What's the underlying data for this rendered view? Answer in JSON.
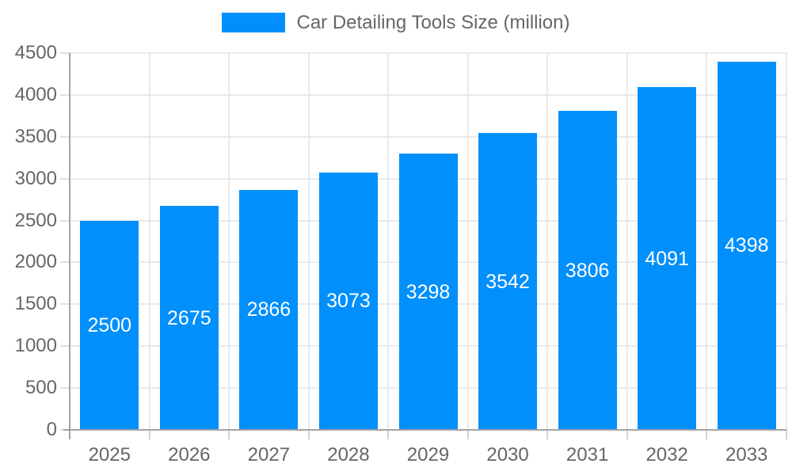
{
  "chart_data": {
    "type": "bar",
    "title": "Car Detailing Tools Size (million)",
    "series_name": "Car Detailing Tools Size (million)",
    "categories": [
      "2025",
      "2026",
      "2027",
      "2028",
      "2029",
      "2030",
      "2031",
      "2032",
      "2033"
    ],
    "values": [
      2500,
      2675,
      2866,
      3073,
      3298,
      3542,
      3806,
      4091,
      4398
    ],
    "bar_labels": [
      "2500",
      "2675",
      "2866",
      "3073",
      "3298",
      "3542",
      "3806",
      "4091",
      "4398"
    ],
    "xlabel": "",
    "ylabel": "",
    "ylim": [
      0,
      4500
    ],
    "ytick_step": 500,
    "yticks": [
      "0",
      "500",
      "1000",
      "1500",
      "2000",
      "2500",
      "3000",
      "3500",
      "4000",
      "4500"
    ],
    "grid": true,
    "legend_position": "top",
    "colors": {
      "bar": "#008FFB",
      "bar_label_text": "#ffffff",
      "axis_text": "#666666",
      "gridline": "#e9e9e9",
      "axis_border": "#a3a3a3"
    }
  }
}
